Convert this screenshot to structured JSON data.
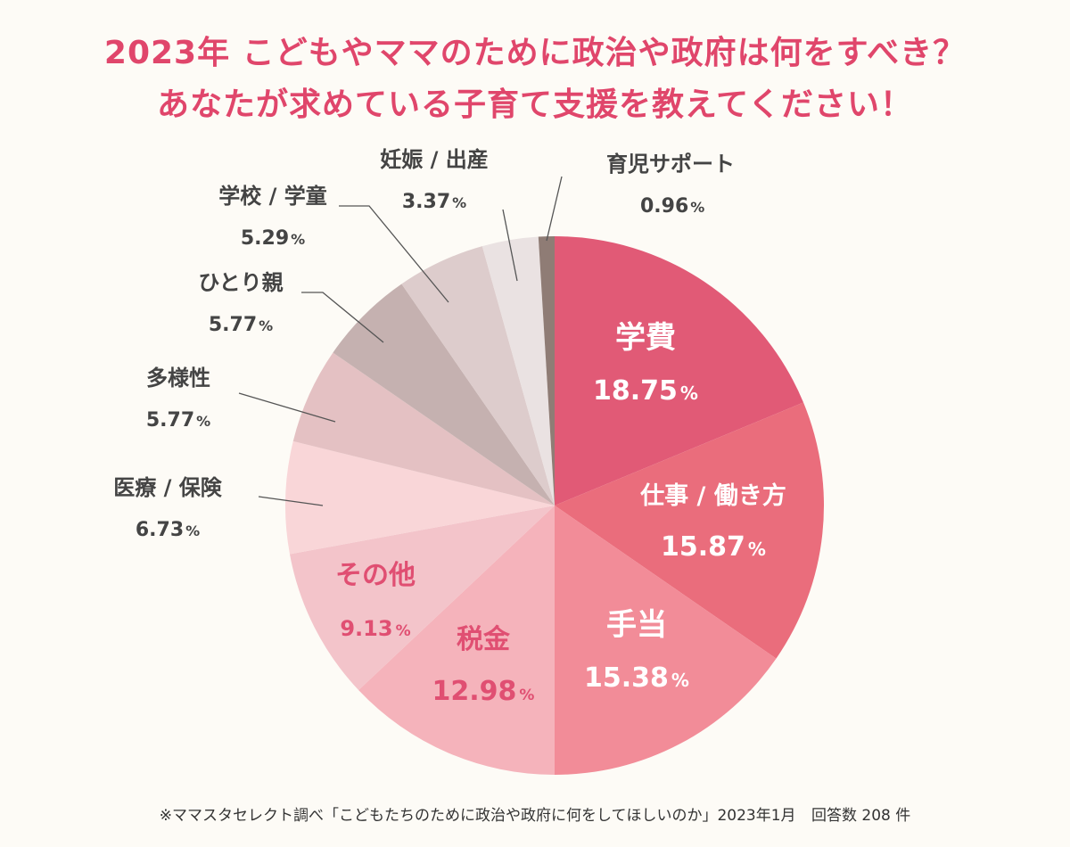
{
  "title_line1": "2023年 こどもやママのために政治や政府は何をすべき？",
  "title_line2": "あなたが求めている子育て支援を教えてください！",
  "footnote": {
    "source": "※ママスタセレクト調べ「こどもたちのために政治や政府に何をしてほしいのか」2023年1月",
    "responses": "回答数 208 件"
  },
  "chart_data": {
    "type": "pie",
    "start_angle_deg": 0,
    "direction": "clockwise",
    "unit": "%",
    "slices": [
      {
        "label": "学費",
        "value": 18.75,
        "value_text": "18.75",
        "color": "#e15a76",
        "text_color": "#ffffff",
        "placement": "inside"
      },
      {
        "label": "仕事 / 働き方",
        "value": 15.87,
        "value_text": "15.87",
        "color": "#ea6d7c",
        "text_color": "#ffffff",
        "placement": "inside"
      },
      {
        "label": "手当",
        "value": 15.38,
        "value_text": "15.38",
        "color": "#f28c98",
        "text_color": "#ffffff",
        "placement": "inside"
      },
      {
        "label": "税金",
        "value": 12.98,
        "value_text": "12.98",
        "color": "#f5b3bb",
        "text_color": "#e04f72",
        "placement": "inside"
      },
      {
        "label": "その他",
        "value": 9.13,
        "value_text": "9.13",
        "color": "#f3c4ca",
        "text_color": "#e04f72",
        "placement": "inside"
      },
      {
        "label": "医療 / 保険",
        "value": 6.73,
        "value_text": "6.73",
        "color": "#f9d6d8",
        "text_color": "#444444",
        "placement": "outside"
      },
      {
        "label": "多様性",
        "value": 5.77,
        "value_text": "5.77",
        "color": "#e4c1c3",
        "text_color": "#444444",
        "placement": "outside"
      },
      {
        "label": "ひとり親",
        "value": 5.77,
        "value_text": "5.77",
        "color": "#c5b1b0",
        "text_color": "#444444",
        "placement": "outside"
      },
      {
        "label": "学校 / 学童",
        "value": 5.29,
        "value_text": "5.29",
        "color": "#ddcccc",
        "text_color": "#444444",
        "placement": "outside"
      },
      {
        "label": "妊娠 / 出産",
        "value": 3.37,
        "value_text": "3.37",
        "color": "#eae2e2",
        "text_color": "#444444",
        "placement": "outside"
      },
      {
        "label": "育児サポート",
        "value": 0.96,
        "value_text": "0.96",
        "color": "#8f7c75",
        "text_color": "#444444",
        "placement": "outside"
      }
    ]
  }
}
